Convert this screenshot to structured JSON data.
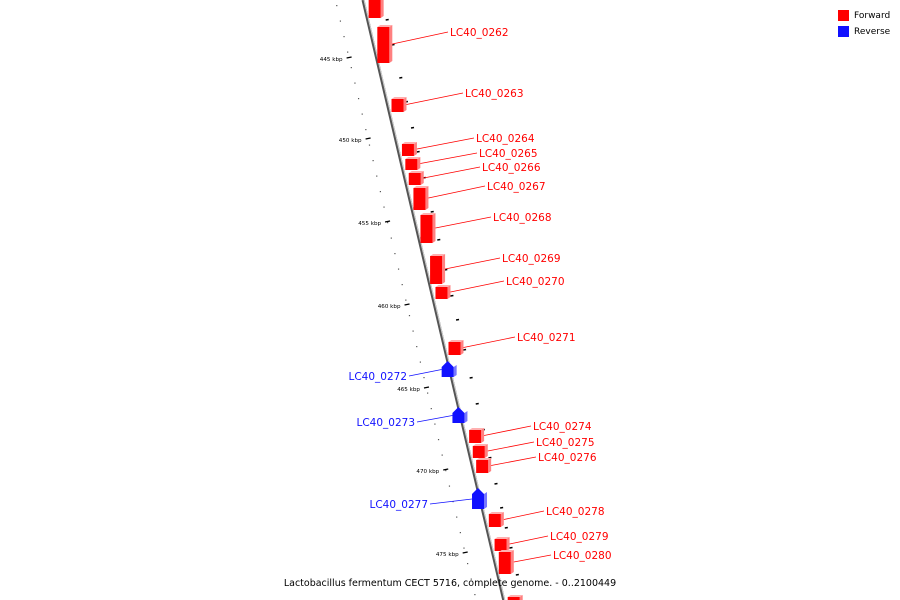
{
  "caption": "Lactobacillus fermentum CECT 5716, complete genome. - 0..2100449",
  "legend": [
    {
      "label": "Forward",
      "color": "#ff0000"
    },
    {
      "label": "Reverse",
      "color": "#1111ff"
    }
  ],
  "colors": {
    "forward": "#ff0000",
    "reverse": "#1111ff",
    "backbone": "#888888"
  },
  "scale_labels": [
    "445 kbp",
    "450 kbp",
    "455 kbp",
    "460 kbp",
    "465 kbp",
    "470 kbp",
    "475 kbp"
  ],
  "genes": [
    {
      "label": "",
      "strand": "forward"
    },
    {
      "label": "LC40_0262",
      "strand": "forward"
    },
    {
      "label": "LC40_0263",
      "strand": "forward"
    },
    {
      "label": "LC40_0264",
      "strand": "forward"
    },
    {
      "label": "LC40_0265",
      "strand": "forward"
    },
    {
      "label": "LC40_0266",
      "strand": "forward"
    },
    {
      "label": "LC40_0267",
      "strand": "forward"
    },
    {
      "label": "LC40_0268",
      "strand": "forward"
    },
    {
      "label": "LC40_0269",
      "strand": "forward"
    },
    {
      "label": "LC40_0270",
      "strand": "forward"
    },
    {
      "label": "LC40_0271",
      "strand": "forward"
    },
    {
      "label": "LC40_0272",
      "strand": "reverse"
    },
    {
      "label": "LC40_0273",
      "strand": "reverse"
    },
    {
      "label": "LC40_0274",
      "strand": "forward"
    },
    {
      "label": "LC40_0275",
      "strand": "forward"
    },
    {
      "label": "LC40_0276",
      "strand": "forward"
    },
    {
      "label": "LC40_0277",
      "strand": "reverse"
    },
    {
      "label": "LC40_0278",
      "strand": "forward"
    },
    {
      "label": "LC40_0279",
      "strand": "forward"
    },
    {
      "label": "LC40_0280",
      "strand": "forward"
    },
    {
      "label": "",
      "strand": "forward"
    }
  ]
}
